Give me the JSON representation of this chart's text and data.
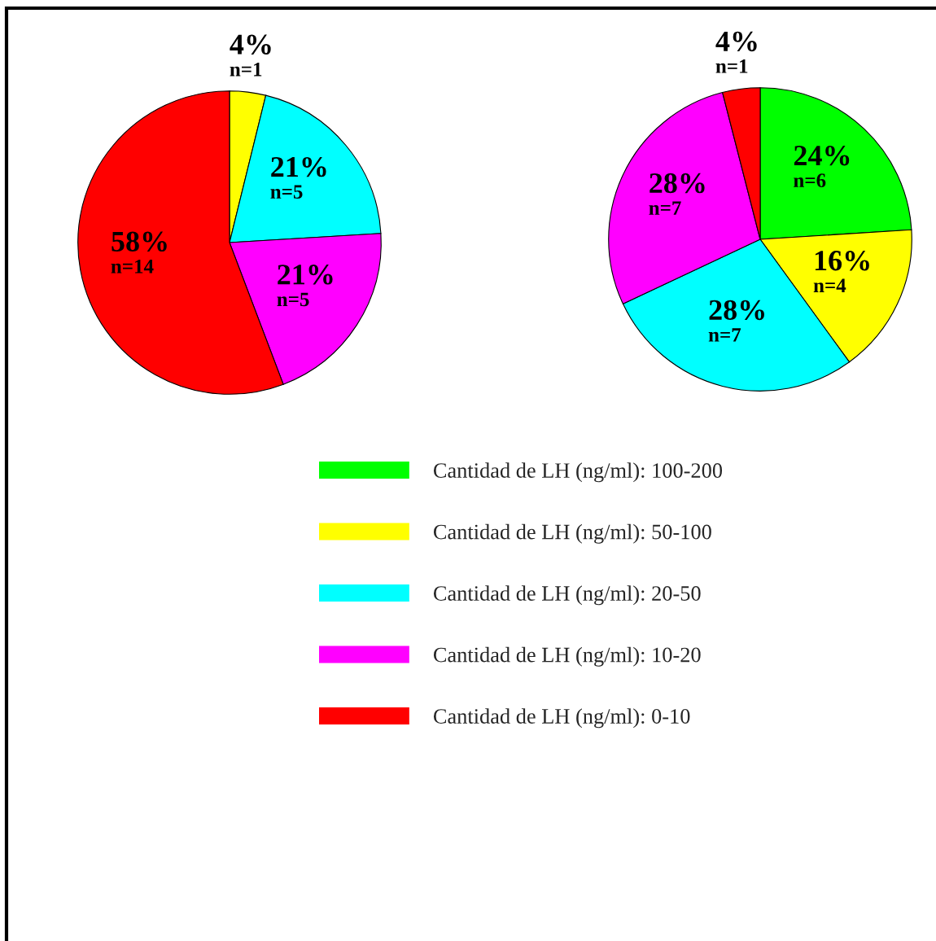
{
  "chart_data": [
    {
      "type": "pie",
      "categories": [
        null,
        null,
        null,
        null
      ],
      "values": [
        4,
        21,
        21,
        58
      ],
      "colors": [
        "#ffff00",
        "#00ffff",
        "#ff00ff",
        "#ff0000"
      ],
      "value_labels": [
        "4%\nn=1",
        "21%\nn=5",
        "21%\nn=5",
        "58%\nn=14"
      ]
    },
    {
      "type": "pie",
      "categories": [
        "Cantidad de LH (ng/ml): 100-200",
        "Cantidad de LH (ng/ml): 50-100",
        "Cantidad de LH (ng/ml): 20-50",
        "Cantidad de LH (ng/ml): 10-20",
        "Cantidad de LH (ng/ml): 0-10"
      ],
      "values": [
        24,
        16,
        28,
        28,
        4
      ],
      "colors": [
        "#00ff00",
        "#ffff00",
        "#00ffff",
        "#ff00ff",
        "#ff0000"
      ],
      "value_labels": [
        "24%\nn=6",
        "16%\nn=4",
        "28%\nn=7",
        "28%\nn=7",
        "4%\nn=1"
      ],
      "legend": "bottom"
    }
  ]
}
